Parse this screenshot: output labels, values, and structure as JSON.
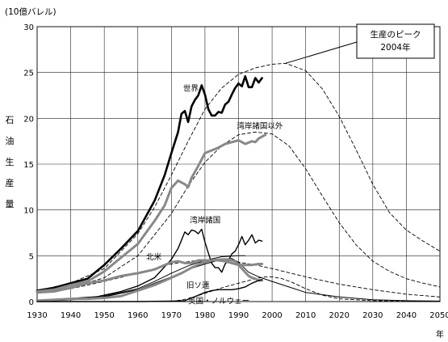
{
  "chart_data": {
    "type": "line",
    "ylabel_unit": "(10億バレル)",
    "ylabel_chars": [
      "石",
      "油",
      "生",
      "産",
      "量"
    ],
    "xlabel": "年",
    "xlim": [
      1930,
      2050
    ],
    "ylim": [
      0,
      30
    ],
    "x_ticks": [
      1930,
      1940,
      1950,
      1960,
      1970,
      1980,
      1990,
      2000,
      2010,
      2020,
      2030,
      2040,
      2050
    ],
    "y_ticks": [
      0,
      5,
      10,
      15,
      20,
      25,
      30
    ],
    "grid": true,
    "legend": "none",
    "annotation": {
      "line1": "生産のピーク",
      "line2": "2004年",
      "point": [
        2004,
        26
      ]
    },
    "series": [
      {
        "name": "世界",
        "style": "actual-thick",
        "color": "#000000",
        "points": [
          [
            1930,
            1.2
          ],
          [
            1935,
            1.5
          ],
          [
            1940,
            2.0
          ],
          [
            1945,
            2.5
          ],
          [
            1950,
            4.0
          ],
          [
            1955,
            5.8
          ],
          [
            1960,
            7.7
          ],
          [
            1965,
            11.0
          ],
          [
            1968,
            13.8
          ],
          [
            1970,
            16.2
          ],
          [
            1972,
            18.5
          ],
          [
            1973,
            20.5
          ],
          [
            1974,
            20.8
          ],
          [
            1975,
            19.6
          ],
          [
            1976,
            21.3
          ],
          [
            1977,
            22.0
          ],
          [
            1978,
            22.5
          ],
          [
            1979,
            23.6
          ],
          [
            1980,
            22.6
          ],
          [
            1981,
            21.0
          ],
          [
            1982,
            20.3
          ],
          [
            1983,
            20.3
          ],
          [
            1984,
            20.7
          ],
          [
            1985,
            20.6
          ],
          [
            1986,
            21.5
          ],
          [
            1987,
            21.8
          ],
          [
            1988,
            22.6
          ],
          [
            1989,
            23.3
          ],
          [
            1990,
            23.8
          ],
          [
            1991,
            23.5
          ],
          [
            1992,
            24.6
          ],
          [
            1993,
            23.4
          ],
          [
            1994,
            23.4
          ],
          [
            1995,
            24.4
          ],
          [
            1996,
            23.9
          ],
          [
            1997,
            24.4
          ]
        ]
      },
      {
        "name": "湾岸諸国以外",
        "style": "actual-gray",
        "color": "#888888",
        "points": [
          [
            1930,
            1.1
          ],
          [
            1935,
            1.3
          ],
          [
            1940,
            1.8
          ],
          [
            1945,
            2.2
          ],
          [
            1950,
            3.3
          ],
          [
            1955,
            4.8
          ],
          [
            1960,
            6.3
          ],
          [
            1965,
            8.8
          ],
          [
            1968,
            10.5
          ],
          [
            1970,
            12.4
          ],
          [
            1972,
            13.2
          ],
          [
            1974,
            12.8
          ],
          [
            1975,
            12.5
          ],
          [
            1976,
            13.5
          ],
          [
            1978,
            14.8
          ],
          [
            1980,
            16.2
          ],
          [
            1982,
            16.5
          ],
          [
            1984,
            16.8
          ],
          [
            1986,
            17.2
          ],
          [
            1988,
            17.4
          ],
          [
            1990,
            17.6
          ],
          [
            1992,
            17.2
          ],
          [
            1994,
            17.5
          ],
          [
            1995,
            17.4
          ],
          [
            1996,
            17.8
          ],
          [
            1998,
            18.2
          ]
        ]
      },
      {
        "name": "湾岸諸国",
        "style": "actual-thin",
        "color": "#000000",
        "points": [
          [
            1930,
            0.1
          ],
          [
            1935,
            0.1
          ],
          [
            1940,
            0.2
          ],
          [
            1945,
            0.3
          ],
          [
            1950,
            0.7
          ],
          [
            1955,
            1.1
          ],
          [
            1960,
            1.7
          ],
          [
            1965,
            2.6
          ],
          [
            1970,
            4.6
          ],
          [
            1972,
            5.8
          ],
          [
            1974,
            7.6
          ],
          [
            1975,
            7.3
          ],
          [
            1976,
            7.8
          ],
          [
            1977,
            7.7
          ],
          [
            1978,
            7.4
          ],
          [
            1979,
            7.9
          ],
          [
            1980,
            6.5
          ],
          [
            1981,
            5.3
          ],
          [
            1982,
            4.2
          ],
          [
            1983,
            3.7
          ],
          [
            1984,
            3.7
          ],
          [
            1985,
            3.2
          ],
          [
            1986,
            4.1
          ],
          [
            1987,
            4.5
          ],
          [
            1988,
            5.2
          ],
          [
            1989,
            5.5
          ],
          [
            1990,
            6.2
          ],
          [
            1991,
            7.1
          ],
          [
            1992,
            6.2
          ],
          [
            1993,
            6.7
          ],
          [
            1994,
            7.3
          ],
          [
            1995,
            6.4
          ],
          [
            1996,
            6.7
          ],
          [
            1997,
            6.6
          ]
        ]
      },
      {
        "name": "北米",
        "style": "actual-gray",
        "color": "#888888",
        "points": [
          [
            1930,
            1.0
          ],
          [
            1935,
            1.1
          ],
          [
            1940,
            1.5
          ],
          [
            1945,
            2.0
          ],
          [
            1950,
            2.3
          ],
          [
            1955,
            2.8
          ],
          [
            1960,
            3.1
          ],
          [
            1965,
            3.5
          ],
          [
            1970,
            4.3
          ],
          [
            1972,
            4.4
          ],
          [
            1974,
            4.2
          ],
          [
            1976,
            4.2
          ],
          [
            1978,
            4.5
          ],
          [
            1980,
            4.5
          ],
          [
            1982,
            4.5
          ],
          [
            1984,
            4.5
          ],
          [
            1986,
            4.4
          ],
          [
            1988,
            4.2
          ],
          [
            1990,
            4.0
          ],
          [
            1992,
            4.0
          ],
          [
            1994,
            4.0
          ],
          [
            1996,
            4.1
          ],
          [
            1997,
            4.1
          ]
        ]
      },
      {
        "name": "旧ソ連",
        "style": "actual-gray",
        "color": "#888888",
        "points": [
          [
            1930,
            0.1
          ],
          [
            1935,
            0.2
          ],
          [
            1940,
            0.3
          ],
          [
            1945,
            0.3
          ],
          [
            1950,
            0.4
          ],
          [
            1955,
            0.6
          ],
          [
            1960,
            1.2
          ],
          [
            1965,
            1.8
          ],
          [
            1970,
            2.6
          ],
          [
            1973,
            3.1
          ],
          [
            1976,
            3.7
          ],
          [
            1979,
            4.2
          ],
          [
            1982,
            4.5
          ],
          [
            1985,
            4.6
          ],
          [
            1987,
            4.6
          ],
          [
            1988,
            4.5
          ],
          [
            1989,
            4.4
          ],
          [
            1990,
            4.0
          ],
          [
            1991,
            3.6
          ],
          [
            1992,
            3.2
          ],
          [
            1993,
            2.8
          ],
          [
            1994,
            2.6
          ],
          [
            1995,
            2.5
          ],
          [
            1996,
            2.3
          ],
          [
            1997,
            2.3
          ]
        ]
      },
      {
        "name": "英国・ノルウェー",
        "style": "actual-thin",
        "color": "#000000",
        "points": [
          [
            1930,
            0
          ],
          [
            1960,
            0
          ],
          [
            1970,
            0.05
          ],
          [
            1974,
            0.1
          ],
          [
            1976,
            0.4
          ],
          [
            1978,
            0.7
          ],
          [
            1980,
            1.0
          ],
          [
            1982,
            1.2
          ],
          [
            1984,
            1.3
          ],
          [
            1986,
            1.3
          ],
          [
            1988,
            1.3
          ],
          [
            1990,
            1.4
          ],
          [
            1992,
            1.6
          ],
          [
            1994,
            2.0
          ],
          [
            1996,
            2.3
          ],
          [
            1997,
            2.4
          ]
        ]
      },
      {
        "name": "世界 推定",
        "style": "model-dashed",
        "color": "#000000",
        "points": [
          [
            1930,
            1.2
          ],
          [
            1940,
            2.0
          ],
          [
            1950,
            3.6
          ],
          [
            1960,
            7.4
          ],
          [
            1965,
            10.3
          ],
          [
            1970,
            13.8
          ],
          [
            1975,
            17.5
          ],
          [
            1980,
            21.0
          ],
          [
            1985,
            23.3
          ],
          [
            1990,
            24.8
          ],
          [
            1995,
            25.5
          ],
          [
            2000,
            25.9
          ],
          [
            2004,
            26.0
          ],
          [
            2010,
            25.2
          ],
          [
            2015,
            23.2
          ],
          [
            2020,
            20.2
          ],
          [
            2025,
            16.6
          ],
          [
            2030,
            12.8
          ],
          [
            2035,
            9.7
          ],
          [
            2040,
            7.8
          ],
          [
            2045,
            6.6
          ],
          [
            2050,
            5.5
          ]
        ]
      },
      {
        "name": "湾岸諸国以外 推定",
        "style": "model-dashed",
        "color": "#000000",
        "points": [
          [
            1930,
            1.0
          ],
          [
            1940,
            1.5
          ],
          [
            1950,
            2.6
          ],
          [
            1960,
            5.0
          ],
          [
            1970,
            9.6
          ],
          [
            1975,
            12.6
          ],
          [
            1980,
            15.2
          ],
          [
            1985,
            17.0
          ],
          [
            1990,
            18.2
          ],
          [
            1995,
            18.5
          ],
          [
            2000,
            18.3
          ],
          [
            2005,
            17.0
          ],
          [
            2010,
            14.5
          ],
          [
            2015,
            11.5
          ],
          [
            2020,
            8.6
          ],
          [
            2025,
            6.2
          ],
          [
            2030,
            4.4
          ],
          [
            2035,
            3.3
          ],
          [
            2040,
            2.5
          ],
          [
            2045,
            2.0
          ],
          [
            2050,
            1.6
          ]
        ]
      },
      {
        "name": "北米 推定",
        "style": "model-dashed",
        "color": "#000000",
        "points": [
          [
            1930,
            0.9
          ],
          [
            1940,
            1.4
          ],
          [
            1950,
            2.2
          ],
          [
            1960,
            3.1
          ],
          [
            1970,
            4.1
          ],
          [
            1980,
            4.6
          ],
          [
            1985,
            4.6
          ],
          [
            1990,
            4.3
          ],
          [
            1995,
            4.0
          ],
          [
            2000,
            3.6
          ],
          [
            2010,
            2.7
          ],
          [
            2020,
            1.9
          ],
          [
            2030,
            1.3
          ],
          [
            2040,
            0.8
          ],
          [
            2050,
            0.5
          ]
        ]
      },
      {
        "name": "旧ソ連 推定",
        "style": "model-solid",
        "color": "#000000",
        "points": [
          [
            1930,
            0.1
          ],
          [
            1940,
            0.2
          ],
          [
            1950,
            0.5
          ],
          [
            1960,
            1.3
          ],
          [
            1965,
            2.0
          ],
          [
            1970,
            2.7
          ],
          [
            1975,
            3.5
          ],
          [
            1980,
            4.1
          ],
          [
            1985,
            4.6
          ],
          [
            1988,
            4.7
          ],
          [
            1990,
            4.3
          ],
          [
            1993,
            3.2
          ],
          [
            1996,
            2.7
          ],
          [
            2000,
            2.2
          ],
          [
            2005,
            1.6
          ],
          [
            2010,
            1.0
          ],
          [
            2020,
            0.5
          ],
          [
            2030,
            0.2
          ],
          [
            2040,
            0.1
          ],
          [
            2050,
            0.05
          ]
        ]
      },
      {
        "name": "英国・ノルウェー 推定",
        "style": "model-dashed",
        "color": "#000000",
        "points": [
          [
            1970,
            0
          ],
          [
            1975,
            0.3
          ],
          [
            1980,
            0.9
          ],
          [
            1985,
            1.5
          ],
          [
            1990,
            2.0
          ],
          [
            1995,
            2.5
          ],
          [
            1998,
            2.7
          ],
          [
            2000,
            2.7
          ],
          [
            2003,
            2.5
          ],
          [
            2006,
            2.1
          ],
          [
            2010,
            1.4
          ],
          [
            2015,
            0.7
          ],
          [
            2020,
            0.3
          ],
          [
            2030,
            0.1
          ],
          [
            2050,
            0
          ]
        ]
      },
      {
        "name": "湾岸諸国 推定",
        "style": "model-solid",
        "color": "#000000",
        "points": [
          [
            1930,
            0.1
          ],
          [
            1950,
            0.6
          ],
          [
            1960,
            1.4
          ],
          [
            1965,
            2.2
          ],
          [
            1970,
            3.1
          ],
          [
            1975,
            3.9
          ],
          [
            1980,
            4.5
          ],
          [
            1985,
            4.9
          ],
          [
            1990,
            5.0
          ],
          [
            1992,
            5.0
          ]
        ]
      }
    ],
    "labels": [
      {
        "text": "世界",
        "x": 1973.5,
        "y": 23.0,
        "anchor": "start"
      },
      {
        "text": "湾岸諸国以外",
        "x": 1989.5,
        "y": 18.9,
        "anchor": "start"
      },
      {
        "text": "湾岸諸国",
        "x": 1975.5,
        "y": 8.6,
        "anchor": "start"
      },
      {
        "text": "北米",
        "x": 1962.5,
        "y": 4.6,
        "anchor": "start"
      },
      {
        "text": "旧ソ連",
        "x": 1974.5,
        "y": 1.5,
        "anchor": "start"
      },
      {
        "text": "英国・ノルウェー",
        "x": 1975.0,
        "y": -0.2,
        "anchor": "start"
      }
    ]
  }
}
